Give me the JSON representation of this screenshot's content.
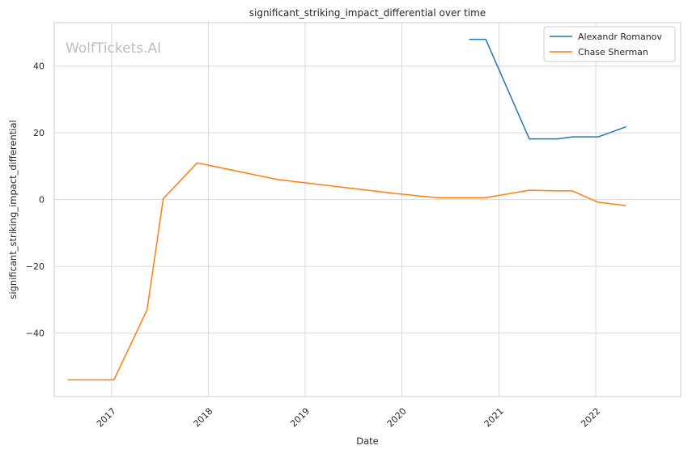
{
  "chart_data": {
    "type": "line",
    "title": "significant_striking_impact_differential over time",
    "xlabel": "Date",
    "ylabel": "significant_striking_impact_differential",
    "watermark": "WolfTickets.AI",
    "x_ticks": [
      "2017",
      "2018",
      "2019",
      "2020",
      "2021",
      "2022"
    ],
    "y_ticks": [
      "−40",
      "−20",
      "0",
      "20",
      "40"
    ],
    "y_tick_values": [
      -40,
      -20,
      0,
      20,
      40
    ],
    "xlim": [
      "2016-05-30",
      "2022-11-17"
    ],
    "ylim": [
      -59,
      53
    ],
    "grid": true,
    "legend_position": "top-right",
    "series": [
      {
        "name": "Alexandr Romanov",
        "color": "#1f77b4",
        "points": [
          [
            "2020-09-10",
            48.0
          ],
          [
            "2020-11-12",
            48.0
          ],
          [
            "2021-04-25",
            18.2
          ],
          [
            "2021-08-10",
            18.2
          ],
          [
            "2021-10-05",
            18.8
          ],
          [
            "2022-01-10",
            18.8
          ],
          [
            "2022-04-25",
            21.8
          ]
        ]
      },
      {
        "name": "Chase Sherman",
        "color": "#ff7f0e",
        "points": [
          [
            "2016-07-20",
            -54.0
          ],
          [
            "2017-01-10",
            -54.0
          ],
          [
            "2017-05-15",
            -33.0
          ],
          [
            "2017-07-15",
            0.3
          ],
          [
            "2017-11-20",
            11.0
          ],
          [
            "2018-09-20",
            6.0
          ],
          [
            "2019-12-10",
            1.8
          ],
          [
            "2020-05-10",
            0.6
          ],
          [
            "2020-11-12",
            0.6
          ],
          [
            "2021-04-25",
            2.8
          ],
          [
            "2021-08-10",
            2.6
          ],
          [
            "2021-10-05",
            2.6
          ],
          [
            "2022-01-10",
            -0.8
          ],
          [
            "2022-04-25",
            -1.8
          ]
        ]
      }
    ]
  }
}
